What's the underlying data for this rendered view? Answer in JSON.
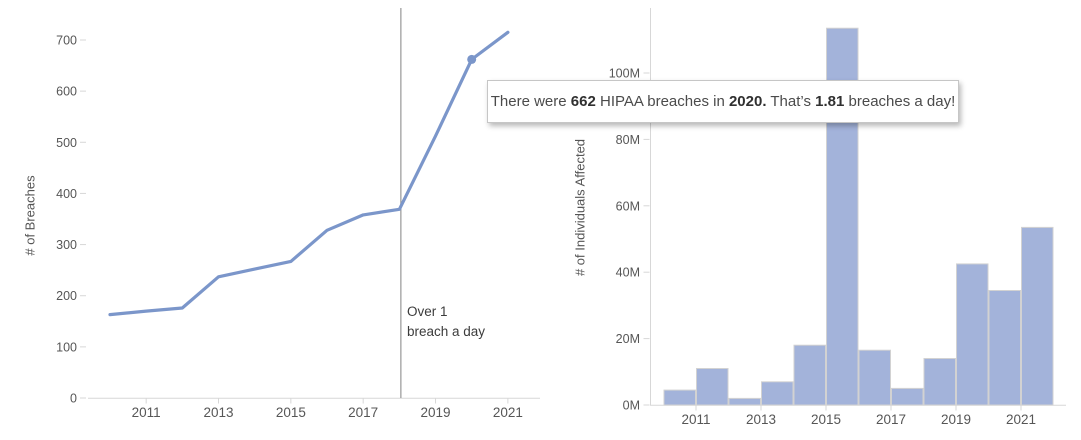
{
  "chart_data": [
    {
      "type": "line",
      "title": "",
      "ylabel": "# of Breaches",
      "xlabel": "",
      "years": [
        2010,
        2011,
        2012,
        2013,
        2014,
        2015,
        2016,
        2017,
        2018,
        2019,
        2020,
        2021
      ],
      "values": [
        163,
        170,
        176,
        237,
        252,
        267,
        328,
        358,
        369,
        512,
        662,
        715
      ],
      "x_ticks": [
        2011,
        2013,
        2015,
        2017,
        2019,
        2021
      ],
      "y_ticks": [
        0,
        100,
        200,
        300,
        400,
        500,
        600,
        700
      ],
      "ylim": [
        0,
        760
      ],
      "grid": "off",
      "line_color": "#7b96ca",
      "marker_year": 2020,
      "marker_value": 662,
      "reference_line_year": 2018,
      "annotation": {
        "line1": "Over 1",
        "line2": "breach a day"
      }
    },
    {
      "type": "bar",
      "title": "",
      "ylabel": "# of Individuals Affected",
      "xlabel": "",
      "years": [
        2010,
        2011,
        2012,
        2013,
        2014,
        2015,
        2016,
        2017,
        2018,
        2019,
        2020,
        2021
      ],
      "values_millions": [
        4.5,
        11,
        2,
        7,
        18,
        113.5,
        16.5,
        5,
        14,
        42.5,
        34.5,
        53.5
      ],
      "x_ticks": [
        2011,
        2013,
        2015,
        2017,
        2019,
        2021
      ],
      "y_ticks": [
        0,
        20,
        40,
        60,
        80,
        100
      ],
      "y_tick_labels": [
        "0M",
        "20M",
        "40M",
        "60M",
        "80M",
        "100M"
      ],
      "ylim": [
        0,
        119
      ],
      "grid": "off",
      "bar_color": "#a3b3da",
      "bar_border_color": "#d2d2d2"
    }
  ],
  "tooltip": {
    "segments": [
      {
        "text": "There were ",
        "bold": false
      },
      {
        "text": "662",
        "bold": true
      },
      {
        "text": " HIPAA breaches in ",
        "bold": false
      },
      {
        "text": "2020.",
        "bold": true
      },
      {
        "text": " That’s ",
        "bold": false
      },
      {
        "text": "1.81",
        "bold": true
      },
      {
        "text": " breaches a day!",
        "bold": false
      }
    ]
  },
  "colors": {
    "axis_line": "#d7d7d7",
    "reference_line": "#9f9f9f",
    "tick_text": "#565656"
  }
}
